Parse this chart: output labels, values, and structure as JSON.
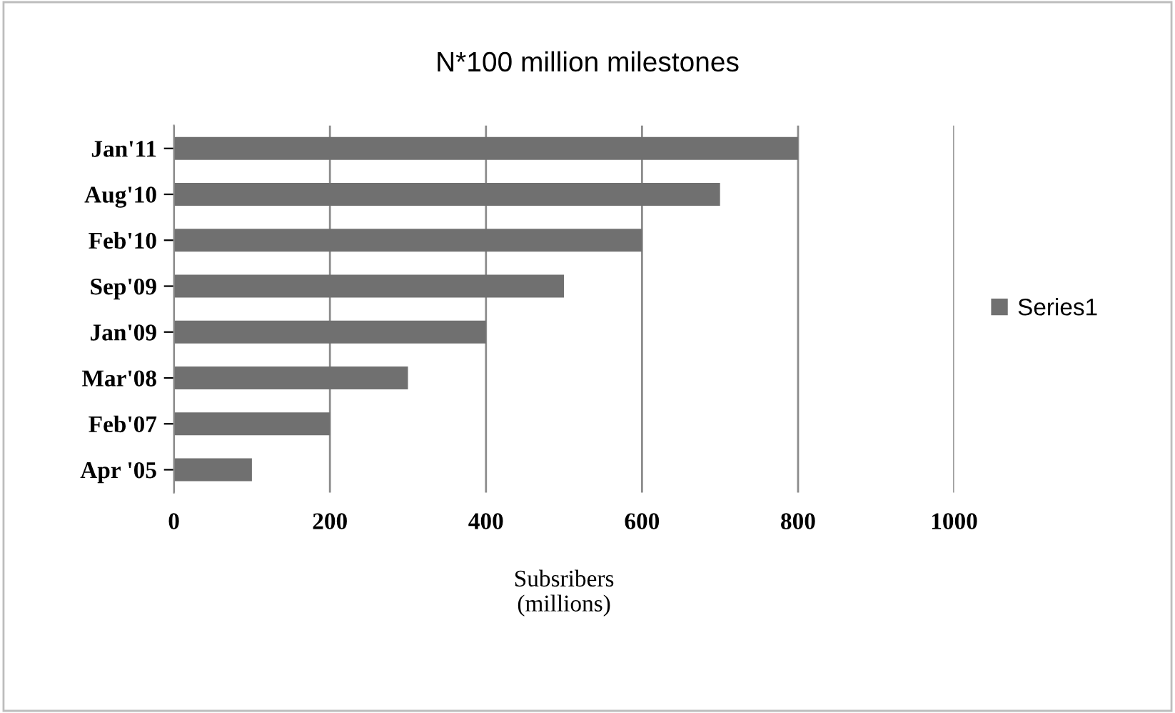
{
  "chart_data": {
    "type": "bar",
    "orientation": "horizontal",
    "title": "N*100 million milestones",
    "xlabel": "Subsribers\n(millions)",
    "categories": [
      "Jan'11",
      "Aug'10",
      "Feb'10",
      "Sep'09",
      "Jan'09",
      "Mar'08",
      "Feb'07",
      "Apr '05"
    ],
    "series": [
      {
        "name": "Series1",
        "color": "#707070",
        "values": [
          800,
          700,
          600,
          500,
          400,
          300,
          200,
          100
        ]
      }
    ],
    "xlim": [
      0,
      1000
    ],
    "xticks": [
      0,
      200,
      400,
      600,
      800,
      1000
    ],
    "grid": "x",
    "legend": "right"
  }
}
